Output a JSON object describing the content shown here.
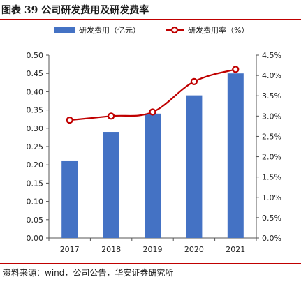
{
  "figure_title": "图表 39  公司研发费用及研发费率",
  "source_note": "资料来源：wind，公司公告，华安证券研究所",
  "colors": {
    "bar": "#4472c4",
    "line": "#c00000",
    "axis": "#555555",
    "rule": "#c00000"
  },
  "chart_data": {
    "type": "bar",
    "categories": [
      "2017",
      "2018",
      "2019",
      "2020",
      "2021"
    ],
    "series": [
      {
        "name": "研发费用（亿元）",
        "type": "bar",
        "axis": "left",
        "values": [
          0.21,
          0.29,
          0.34,
          0.39,
          0.45
        ]
      },
      {
        "name": "研发费用率（%）",
        "type": "line",
        "axis": "right",
        "values": [
          0.029,
          0.03,
          0.031,
          0.0385,
          0.0415
        ]
      }
    ],
    "left_axis": {
      "ylim": [
        0,
        0.5
      ],
      "ticks": [
        "0.00",
        "0.05",
        "0.10",
        "0.15",
        "0.20",
        "0.25",
        "0.30",
        "0.35",
        "0.40",
        "0.45",
        "0.50"
      ]
    },
    "right_axis": {
      "ylim": [
        0,
        0.045
      ],
      "ticks": [
        "0.0%",
        "0.5%",
        "1.0%",
        "1.5%",
        "2.0%",
        "2.5%",
        "3.0%",
        "3.5%",
        "4.0%",
        "4.5%"
      ]
    },
    "grid": false,
    "legend_position": "top"
  }
}
